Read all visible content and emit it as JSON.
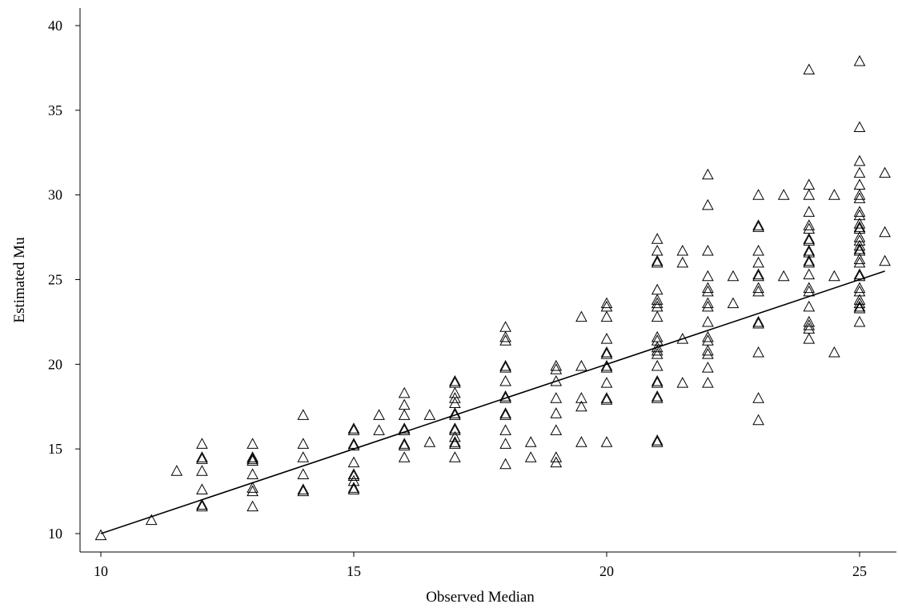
{
  "chart_data": {
    "type": "scatter",
    "title": "",
    "xlabel": "Observed Median",
    "ylabel": "Estimated Mu",
    "xlim": [
      10,
      25.5
    ],
    "ylim": [
      9.5,
      41
    ],
    "x_ticks": [
      10,
      15,
      20,
      25
    ],
    "y_ticks": [
      10,
      15,
      20,
      25,
      30,
      35,
      40
    ],
    "grid": false,
    "marker": "triangle-open",
    "fit_line": {
      "x": [
        10,
        25.5
      ],
      "y": [
        10,
        25.5
      ]
    },
    "points": [
      [
        10,
        9.9
      ],
      [
        11,
        10.8
      ],
      [
        11.5,
        13.7
      ],
      [
        12,
        15.3
      ],
      [
        12,
        14.5
      ],
      [
        12,
        14.4
      ],
      [
        12,
        13.7
      ],
      [
        12,
        12.6
      ],
      [
        12,
        11.7
      ],
      [
        12,
        11.6
      ],
      [
        13,
        15.3
      ],
      [
        13,
        14.5
      ],
      [
        13,
        14.4
      ],
      [
        13,
        14.3
      ],
      [
        13,
        13.5
      ],
      [
        13,
        12.7
      ],
      [
        13,
        12.5
      ],
      [
        13,
        11.6
      ],
      [
        14,
        17.0
      ],
      [
        14,
        15.3
      ],
      [
        14,
        14.5
      ],
      [
        14,
        13.5
      ],
      [
        14,
        12.6
      ],
      [
        14,
        12.5
      ],
      [
        15,
        16.2
      ],
      [
        15,
        16.1
      ],
      [
        15,
        15.3
      ],
      [
        15,
        15.2
      ],
      [
        15,
        14.2
      ],
      [
        15,
        13.5
      ],
      [
        15,
        13.4
      ],
      [
        15,
        13.1
      ],
      [
        15,
        12.7
      ],
      [
        15,
        12.6
      ],
      [
        15.5,
        17.0
      ],
      [
        15.5,
        16.1
      ],
      [
        16,
        18.3
      ],
      [
        16,
        17.6
      ],
      [
        16,
        17.0
      ],
      [
        16,
        16.2
      ],
      [
        16,
        16.1
      ],
      [
        16,
        15.3
      ],
      [
        16,
        15.2
      ],
      [
        16,
        14.5
      ],
      [
        16.5,
        17.0
      ],
      [
        16.5,
        15.4
      ],
      [
        17,
        19.0
      ],
      [
        17,
        18.9
      ],
      [
        17,
        18.3
      ],
      [
        17,
        18.0
      ],
      [
        17,
        17.7
      ],
      [
        17,
        17.1
      ],
      [
        17,
        17.0
      ],
      [
        17,
        16.2
      ],
      [
        17,
        16.1
      ],
      [
        17,
        15.7
      ],
      [
        17,
        15.4
      ],
      [
        17,
        15.3
      ],
      [
        17,
        14.5
      ],
      [
        18,
        22.2
      ],
      [
        18,
        21.6
      ],
      [
        18,
        21.4
      ],
      [
        18,
        19.9
      ],
      [
        18,
        19.8
      ],
      [
        18,
        19.0
      ],
      [
        18,
        18.1
      ],
      [
        18,
        18.0
      ],
      [
        18,
        17.1
      ],
      [
        18,
        17.0
      ],
      [
        18,
        16.1
      ],
      [
        18,
        15.3
      ],
      [
        18,
        14.1
      ],
      [
        18.5,
        15.4
      ],
      [
        18.5,
        14.5
      ],
      [
        19,
        19.9
      ],
      [
        19,
        19.7
      ],
      [
        19,
        19.0
      ],
      [
        19,
        18.0
      ],
      [
        19,
        17.1
      ],
      [
        19,
        16.1
      ],
      [
        19,
        14.5
      ],
      [
        19,
        14.2
      ],
      [
        19.5,
        22.8
      ],
      [
        19.5,
        19.9
      ],
      [
        19.5,
        18.0
      ],
      [
        19.5,
        17.5
      ],
      [
        19.5,
        15.4
      ],
      [
        20,
        23.6
      ],
      [
        20,
        23.4
      ],
      [
        20,
        22.8
      ],
      [
        20,
        21.5
      ],
      [
        20,
        20.7
      ],
      [
        20,
        20.6
      ],
      [
        20,
        19.9
      ],
      [
        20,
        19.8
      ],
      [
        20,
        18.9
      ],
      [
        20,
        18.0
      ],
      [
        20,
        17.9
      ],
      [
        20,
        15.4
      ],
      [
        21,
        27.4
      ],
      [
        21,
        26.7
      ],
      [
        21,
        26.1
      ],
      [
        21,
        26.0
      ],
      [
        21,
        24.4
      ],
      [
        21,
        23.8
      ],
      [
        21,
        23.6
      ],
      [
        21,
        23.4
      ],
      [
        21,
        22.8
      ],
      [
        21,
        21.6
      ],
      [
        21,
        21.4
      ],
      [
        21,
        21.0
      ],
      [
        21,
        20.8
      ],
      [
        21,
        20.6
      ],
      [
        21,
        19.9
      ],
      [
        21,
        19.0
      ],
      [
        21,
        18.9
      ],
      [
        21,
        18.1
      ],
      [
        21,
        18.0
      ],
      [
        21,
        15.5
      ],
      [
        21,
        15.4
      ],
      [
        21.5,
        26.7
      ],
      [
        21.5,
        26.0
      ],
      [
        21.5,
        21.5
      ],
      [
        21.5,
        18.9
      ],
      [
        22,
        31.2
      ],
      [
        22,
        29.4
      ],
      [
        22,
        26.7
      ],
      [
        22,
        25.2
      ],
      [
        22,
        24.5
      ],
      [
        22,
        24.3
      ],
      [
        22,
        23.6
      ],
      [
        22,
        23.4
      ],
      [
        22,
        22.5
      ],
      [
        22,
        21.6
      ],
      [
        22,
        21.4
      ],
      [
        22,
        20.8
      ],
      [
        22,
        20.6
      ],
      [
        22,
        19.8
      ],
      [
        22,
        18.9
      ],
      [
        22.5,
        25.2
      ],
      [
        22.5,
        23.6
      ],
      [
        23,
        30.0
      ],
      [
        23,
        28.2
      ],
      [
        23,
        28.1
      ],
      [
        23,
        26.7
      ],
      [
        23,
        26.0
      ],
      [
        23,
        25.3
      ],
      [
        23,
        25.2
      ],
      [
        23,
        24.5
      ],
      [
        23,
        24.3
      ],
      [
        23,
        22.5
      ],
      [
        23,
        22.4
      ],
      [
        23,
        20.7
      ],
      [
        23,
        18.0
      ],
      [
        23,
        16.7
      ],
      [
        23.5,
        30.0
      ],
      [
        23.5,
        25.2
      ],
      [
        24,
        37.4
      ],
      [
        24,
        30.6
      ],
      [
        24,
        30.0
      ],
      [
        24,
        29.0
      ],
      [
        24,
        28.2
      ],
      [
        24,
        28.0
      ],
      [
        24,
        27.4
      ],
      [
        24,
        27.3
      ],
      [
        24,
        26.7
      ],
      [
        24,
        26.6
      ],
      [
        24,
        26.1
      ],
      [
        24,
        26.0
      ],
      [
        24,
        25.3
      ],
      [
        24,
        24.5
      ],
      [
        24,
        24.3
      ],
      [
        24,
        23.4
      ],
      [
        24,
        22.5
      ],
      [
        24,
        22.3
      ],
      [
        24,
        22.1
      ],
      [
        24,
        21.5
      ],
      [
        24.5,
        30.0
      ],
      [
        24.5,
        25.2
      ],
      [
        24.5,
        20.7
      ],
      [
        25,
        37.9
      ],
      [
        25,
        34.0
      ],
      [
        25,
        32.0
      ],
      [
        25,
        31.3
      ],
      [
        25,
        30.6
      ],
      [
        25,
        30.0
      ],
      [
        25,
        29.8
      ],
      [
        25,
        29.0
      ],
      [
        25,
        28.8
      ],
      [
        25,
        28.3
      ],
      [
        25,
        28.1
      ],
      [
        25,
        28.0
      ],
      [
        25,
        27.5
      ],
      [
        25,
        27.3
      ],
      [
        25,
        27.0
      ],
      [
        25,
        26.8
      ],
      [
        25,
        26.7
      ],
      [
        25,
        26.2
      ],
      [
        25,
        26.0
      ],
      [
        25,
        25.3
      ],
      [
        25,
        25.2
      ],
      [
        25,
        24.5
      ],
      [
        25,
        24.3
      ],
      [
        25,
        23.8
      ],
      [
        25,
        23.6
      ],
      [
        25,
        23.4
      ],
      [
        25,
        23.3
      ],
      [
        25,
        22.5
      ],
      [
        25.5,
        31.3
      ],
      [
        25.5,
        27.8
      ],
      [
        25.5,
        26.1
      ]
    ]
  }
}
